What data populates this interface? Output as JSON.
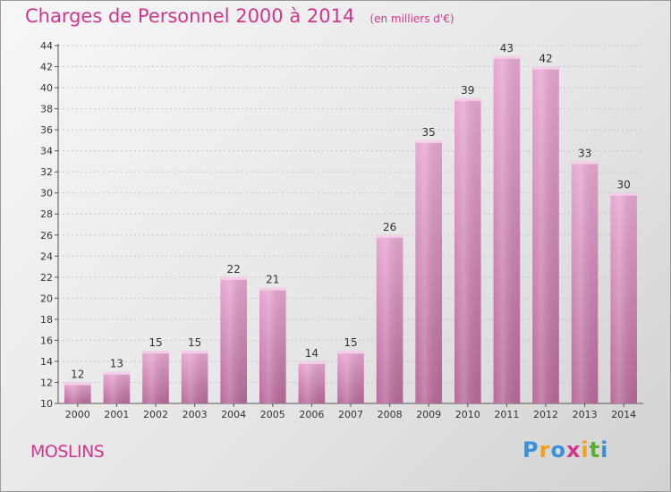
{
  "chart_data": {
    "type": "bar",
    "title": "Charges de Personnel 2000 à 2014",
    "subtitle": "(en milliers d'€)",
    "categories": [
      "2000",
      "2001",
      "2002",
      "2003",
      "2004",
      "2005",
      "2006",
      "2007",
      "2008",
      "2009",
      "2010",
      "2011",
      "2012",
      "2013",
      "2014"
    ],
    "values": [
      12,
      13,
      15,
      15,
      22,
      21,
      14,
      15,
      26,
      35,
      39,
      43,
      42,
      33,
      30
    ],
    "ylim": [
      10,
      44
    ],
    "yticks": [
      10,
      12,
      14,
      16,
      18,
      20,
      22,
      24,
      26,
      28,
      30,
      32,
      34,
      36,
      38,
      40,
      42,
      44
    ],
    "grid": true,
    "legend": "none",
    "bar_color_top": "#e8a8d2",
    "bar_color_bottom": "#b86a9a",
    "text_color": "#333333"
  },
  "commune": "MOSLINS",
  "logo": {
    "letters": [
      "P",
      "r",
      "o",
      "x",
      "i",
      "t",
      "i"
    ],
    "colors": [
      "#3a8fd6",
      "#f0a21a",
      "#3a8fd6",
      "#d0368e",
      "#f0a21a",
      "#58b030",
      "#3a8fd6"
    ],
    "color_brand": "#d0368e"
  }
}
